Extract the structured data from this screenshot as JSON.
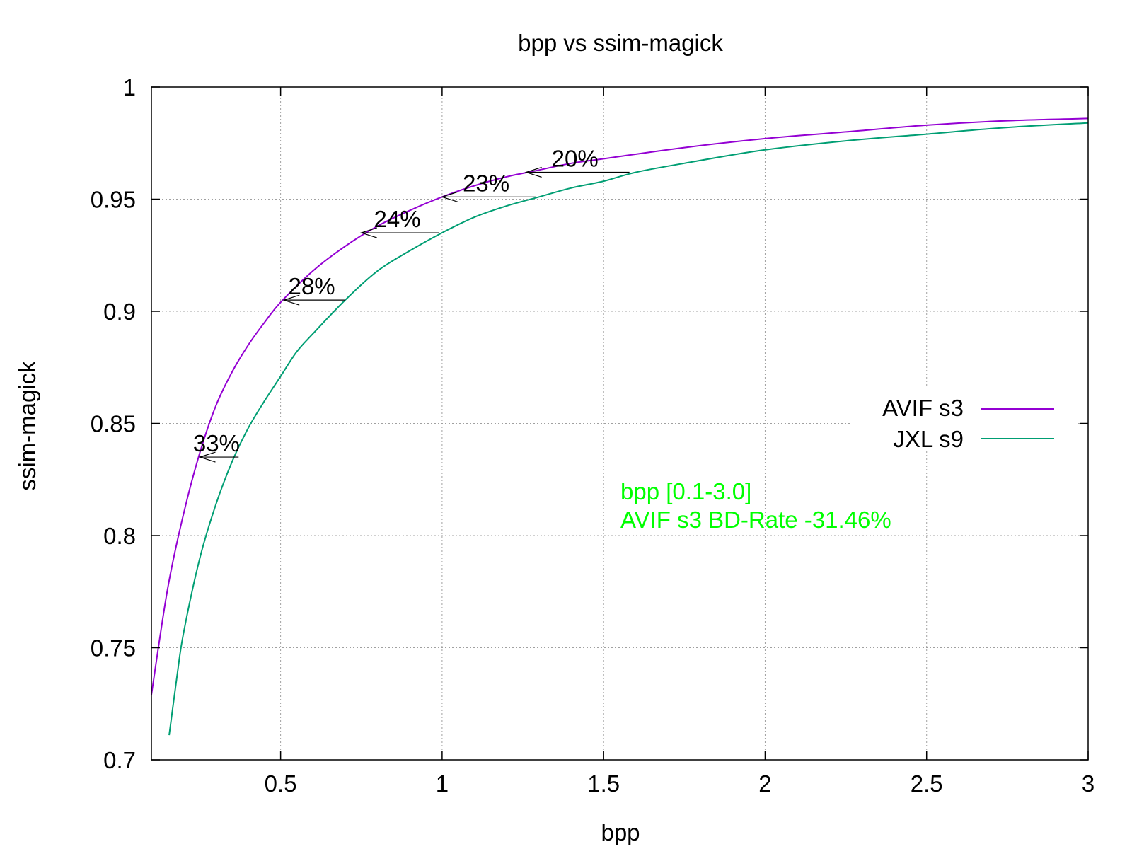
{
  "chart_data": {
    "type": "line",
    "title": "bpp vs ssim-magick",
    "xlabel": "bpp",
    "ylabel": "ssim-magick",
    "xlim": [
      0.1,
      3.0
    ],
    "ylim": [
      0.7,
      1.0
    ],
    "grid": true,
    "legend_position": "right",
    "x_ticks": [
      {
        "value": 0.5,
        "label": "0.5"
      },
      {
        "value": 1,
        "label": "1"
      },
      {
        "value": 1.5,
        "label": "1.5"
      },
      {
        "value": 2,
        "label": "2"
      },
      {
        "value": 2.5,
        "label": "2.5"
      },
      {
        "value": 3,
        "label": "3"
      }
    ],
    "y_ticks": [
      {
        "value": 0.7,
        "label": "0.7"
      },
      {
        "value": 0.75,
        "label": "0.75"
      },
      {
        "value": 0.8,
        "label": "0.8"
      },
      {
        "value": 0.85,
        "label": "0.85"
      },
      {
        "value": 0.9,
        "label": "0.9"
      },
      {
        "value": 0.95,
        "label": "0.95"
      },
      {
        "value": 1.0,
        "label": "1"
      }
    ],
    "series": [
      {
        "name": "AVIF s3",
        "color": "#9400d3",
        "x": [
          0.1,
          0.15,
          0.2,
          0.25,
          0.3,
          0.35,
          0.4,
          0.45,
          0.5,
          0.6,
          0.7,
          0.8,
          0.9,
          1.0,
          1.1,
          1.2,
          1.3,
          1.4,
          1.5,
          1.75,
          2.0,
          2.25,
          2.5,
          2.75,
          3.0
        ],
        "y": [
          0.729,
          0.776,
          0.81,
          0.837,
          0.858,
          0.873,
          0.885,
          0.895,
          0.904,
          0.918,
          0.929,
          0.938,
          0.945,
          0.951,
          0.956,
          0.96,
          0.963,
          0.966,
          0.968,
          0.973,
          0.977,
          0.98,
          0.983,
          0.985,
          0.986
        ]
      },
      {
        "name": "JXL s9",
        "color": "#009e73",
        "x": [
          0.155,
          0.18,
          0.2,
          0.25,
          0.3,
          0.35,
          0.4,
          0.45,
          0.5,
          0.55,
          0.6,
          0.7,
          0.8,
          0.9,
          1.0,
          1.1,
          1.2,
          1.3,
          1.4,
          1.5,
          1.6,
          1.75,
          2.0,
          2.25,
          2.5,
          2.75,
          3.0
        ],
        "y": [
          0.711,
          0.738,
          0.757,
          0.79,
          0.814,
          0.833,
          0.848,
          0.86,
          0.871,
          0.882,
          0.89,
          0.905,
          0.918,
          0.927,
          0.935,
          0.942,
          0.947,
          0.951,
          0.955,
          0.958,
          0.962,
          0.966,
          0.972,
          0.976,
          0.979,
          0.982,
          0.984
        ]
      }
    ],
    "annotations": [
      {
        "label": "33%",
        "x_from": 0.37,
        "x_to": 0.25,
        "y": 0.835
      },
      {
        "label": "28%",
        "x_from": 0.7,
        "x_to": 0.51,
        "y": 0.905
      },
      {
        "label": "24%",
        "x_from": 0.99,
        "x_to": 0.75,
        "y": 0.935
      },
      {
        "label": "23%",
        "x_from": 1.29,
        "x_to": 1.0,
        "y": 0.951
      },
      {
        "label": "20%",
        "x_from": 1.58,
        "x_to": 1.26,
        "y": 0.962
      }
    ],
    "info_text": {
      "color": "#00ff00",
      "lines": [
        "bpp [0.1-3.0]",
        "AVIF s3 BD-Rate -31.46%"
      ]
    }
  }
}
